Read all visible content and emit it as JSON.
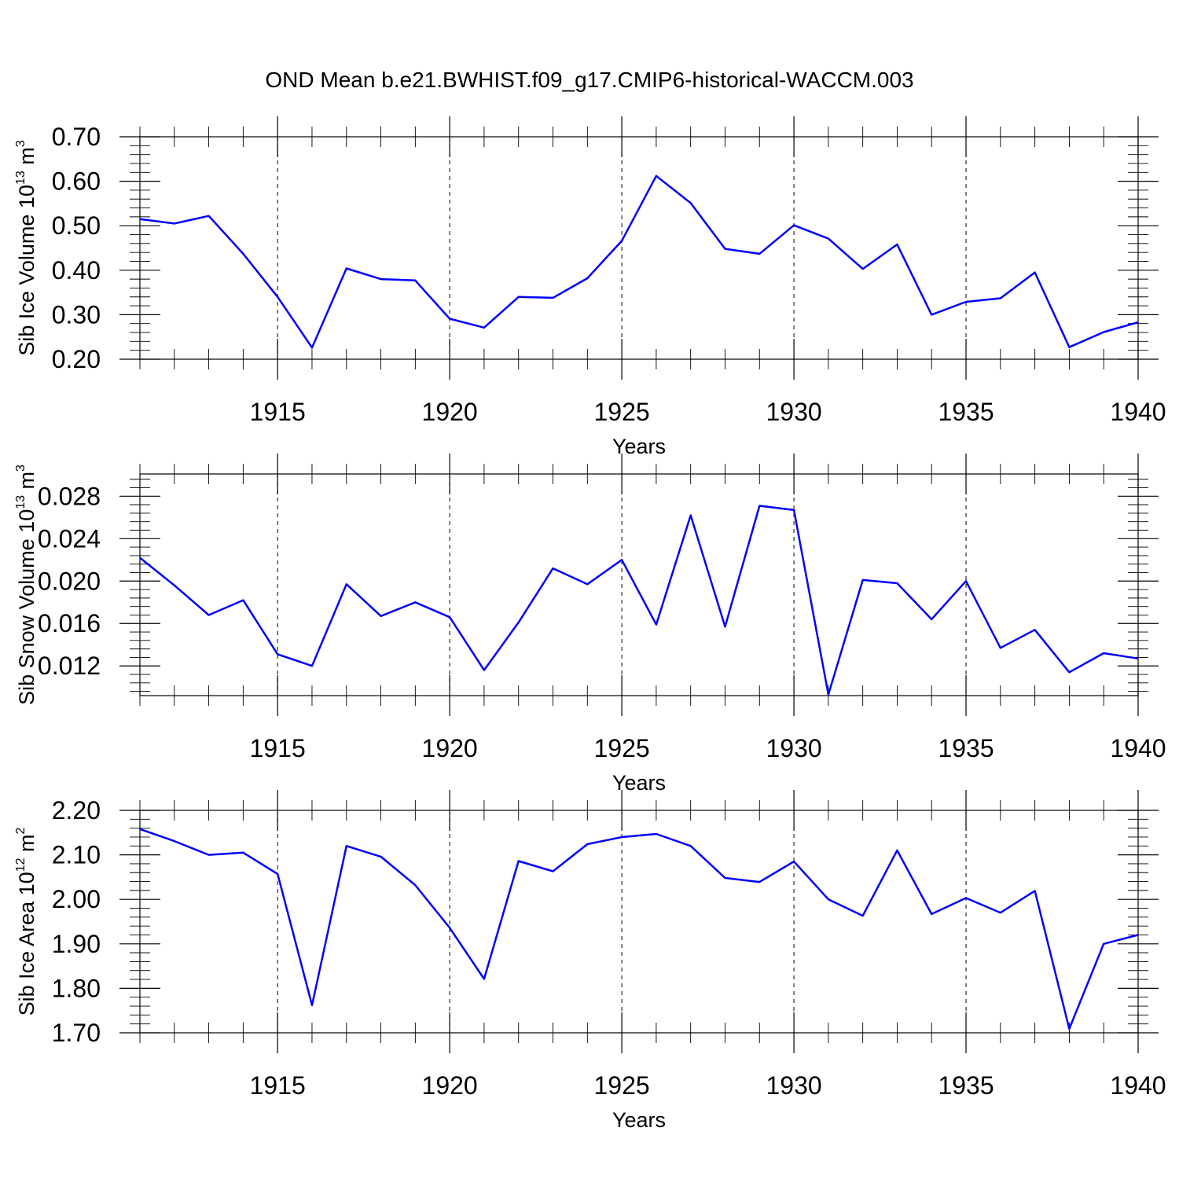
{
  "title": "OND Mean b.e21.BWHIST.f09_g17.CMIP6-historical-WACCM.003",
  "colors": {
    "series": "#0000ff",
    "axes": "#000000",
    "background": "#ffffff"
  },
  "chart_data": [
    {
      "type": "line",
      "ylabel": {
        "text": "Sib Ice Volume 10",
        "exp1": "13",
        "mid": " m",
        "exp2": "3"
      },
      "xlabel": "Years",
      "xlim": [
        1911,
        1940
      ],
      "ylim": [
        0.2,
        0.7
      ],
      "xticks": [
        1915,
        1920,
        1925,
        1930,
        1935,
        1940
      ],
      "yticks": [
        "0.20",
        "0.30",
        "0.40",
        "0.50",
        "0.60",
        "0.70"
      ],
      "grid": "vertical dashed at major x ticks",
      "x": [
        1911,
        1912,
        1913,
        1914,
        1915,
        1916,
        1917,
        1918,
        1919,
        1920,
        1921,
        1922,
        1923,
        1924,
        1925,
        1926,
        1927,
        1928,
        1929,
        1930,
        1931,
        1932,
        1933,
        1934,
        1935,
        1936,
        1937,
        1938,
        1939,
        1940
      ],
      "values": [
        0.515,
        0.505,
        0.522,
        0.437,
        0.34,
        0.226,
        0.404,
        0.38,
        0.377,
        0.291,
        0.271,
        0.34,
        0.338,
        0.382,
        0.466,
        0.612,
        0.551,
        0.448,
        0.437,
        0.501,
        0.471,
        0.403,
        0.458,
        0.3,
        0.329,
        0.337,
        0.395,
        0.227,
        0.261,
        0.283
      ]
    },
    {
      "type": "line",
      "ylabel": {
        "text": "Sib Snow Volume 10",
        "exp1": "13",
        "mid": " m",
        "exp2": "3"
      },
      "xlabel": "Years",
      "xlim": [
        1911,
        1940
      ],
      "ylim": [
        0.0092,
        0.0301
      ],
      "xticks": [
        1915,
        1920,
        1925,
        1930,
        1935,
        1940
      ],
      "yticks": [
        "0.012",
        "0.016",
        "0.020",
        "0.024",
        "0.028"
      ],
      "grid": "vertical dashed at major x ticks",
      "x": [
        1911,
        1912,
        1913,
        1914,
        1915,
        1916,
        1917,
        1918,
        1919,
        1920,
        1921,
        1922,
        1923,
        1924,
        1925,
        1926,
        1927,
        1928,
        1929,
        1930,
        1931,
        1932,
        1933,
        1934,
        1935,
        1936,
        1937,
        1938,
        1939,
        1940
      ],
      "values": [
        0.0222,
        0.0196,
        0.0168,
        0.0182,
        0.0131,
        0.012,
        0.0197,
        0.0167,
        0.018,
        0.0166,
        0.0116,
        0.0161,
        0.0212,
        0.0197,
        0.022,
        0.0159,
        0.0262,
        0.0157,
        0.0271,
        0.0267,
        0.0093,
        0.0201,
        0.0198,
        0.0164,
        0.02,
        0.0137,
        0.0154,
        0.0114,
        0.0132,
        0.0127
      ]
    },
    {
      "type": "line",
      "ylabel": {
        "text": "Sib Ice Area 10",
        "exp1": "12",
        "mid": " m",
        "exp2": "2"
      },
      "xlabel": "Years",
      "xlim": [
        1911,
        1940
      ],
      "ylim": [
        1.7,
        2.2
      ],
      "xticks": [
        1915,
        1920,
        1925,
        1930,
        1935,
        1940
      ],
      "yticks": [
        "1.70",
        "1.80",
        "1.90",
        "2.00",
        "2.10",
        "2.20"
      ],
      "grid": "vertical dashed at major x ticks",
      "x": [
        1911,
        1912,
        1913,
        1914,
        1915,
        1916,
        1917,
        1918,
        1919,
        1920,
        1921,
        1922,
        1923,
        1924,
        1925,
        1926,
        1927,
        1928,
        1929,
        1930,
        1931,
        1932,
        1933,
        1934,
        1935,
        1936,
        1937,
        1938,
        1939,
        1940
      ],
      "values": [
        2.158,
        2.131,
        2.1,
        2.105,
        2.057,
        1.762,
        2.12,
        2.096,
        2.032,
        1.936,
        1.821,
        2.086,
        2.063,
        2.124,
        2.14,
        2.147,
        2.12,
        2.048,
        2.039,
        2.085,
        2.0,
        1.963,
        2.11,
        1.967,
        2.003,
        1.97,
        2.019,
        1.709,
        1.9,
        1.92
      ]
    }
  ]
}
